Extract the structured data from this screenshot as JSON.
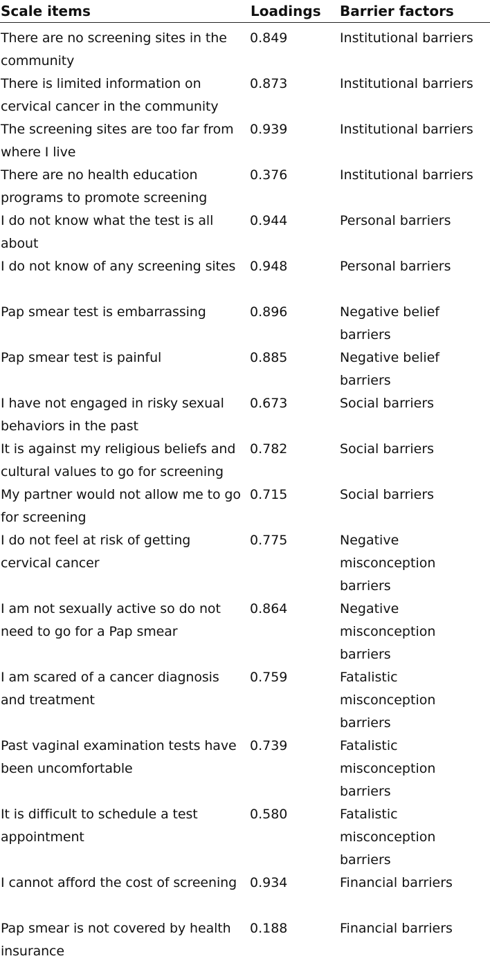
{
  "table": {
    "headers": {
      "item": "Scale items",
      "loading": "Loadings",
      "factor": "Barrier factors"
    },
    "rows": [
      {
        "item": "There are no screening sites in the community",
        "loading": "0.849",
        "factor": "Institutional barriers"
      },
      {
        "item": "There is limited information on cervical cancer in the community",
        "loading": "0.873",
        "factor": "Institutional barriers"
      },
      {
        "item": "The screening sites are too far from where I live",
        "loading": "0.939",
        "factor": "Institutional barriers"
      },
      {
        "item": "There are no health education programs to promote screening",
        "loading": "0.376",
        "factor": "Institutional barriers"
      },
      {
        "item": "I do not know what the test is all about",
        "loading": "0.944",
        "factor": "Personal barriers"
      },
      {
        "item": "I do not know of any screening sites",
        "loading": "0.948",
        "factor": "Personal barriers"
      },
      {
        "item": "Pap smear test is embarrassing",
        "loading": "0.896",
        "factor": "Negative belief barriers"
      },
      {
        "item": "Pap smear test is painful",
        "loading": "0.885",
        "factor": "Negative belief barriers"
      },
      {
        "item": "I have not engaged in risky sexual behaviors in the past",
        "loading": "0.673",
        "factor": "Social barriers"
      },
      {
        "item": "It is against my religious beliefs and cultural values to go for screening",
        "loading": "0.782",
        "factor": "Social barriers"
      },
      {
        "item": "My partner would not allow me to go for screening",
        "loading": "0.715",
        "factor": "Social barriers"
      },
      {
        "item": "I do not feel at risk of getting cervical cancer",
        "loading": "0.775",
        "factor": "Negative misconception barriers"
      },
      {
        "item": "I am not sexually active so do not need to go for a Pap smear",
        "loading": "0.864",
        "factor": "Negative misconception barriers"
      },
      {
        "item": "I am scared of a cancer diagnosis and treatment",
        "loading": "0.759",
        "factor": "Fatalistic misconception barriers"
      },
      {
        "item": "Past vaginal examination tests have been uncomfortable",
        "loading": "0.739",
        "factor": "Fatalistic misconception barriers"
      },
      {
        "item": "It is difficult to schedule a test appointment",
        "loading": "0.580",
        "factor": "Fatalistic misconception barriers"
      },
      {
        "item": "I cannot afford the cost of screening",
        "loading": "0.934",
        "factor": "Financial barriers"
      },
      {
        "item": "Pap smear is not covered by health insurance",
        "loading": "0.188",
        "factor": "Financial barriers"
      }
    ]
  }
}
